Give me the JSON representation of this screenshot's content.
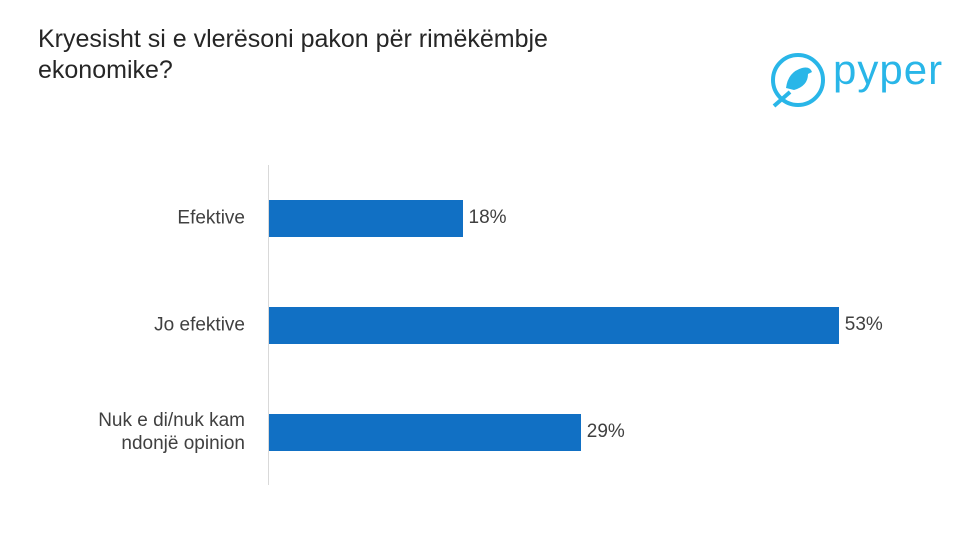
{
  "logo": "pyper",
  "chart_data": {
    "type": "bar",
    "orientation": "horizontal",
    "title": "Kryesisht si e vlerësoni pakon për rimëkëmbje ekonomike?",
    "categories": [
      "Efektive",
      "Jo efektive",
      "Nuk e di/nuk kam ndonjë opinion"
    ],
    "values": [
      18,
      53,
      29
    ],
    "value_labels": [
      "18%",
      "53%",
      "29%"
    ],
    "color": "#1170c4"
  }
}
